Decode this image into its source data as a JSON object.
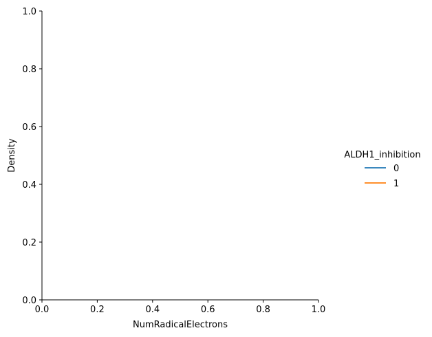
{
  "chart_data": {
    "type": "line",
    "title": "",
    "xlabel": "NumRadicalElectrons",
    "ylabel": "Density",
    "xlim": [
      0.0,
      1.0
    ],
    "ylim": [
      0.0,
      1.0
    ],
    "xticks": [
      "0.0",
      "0.2",
      "0.4",
      "0.6",
      "0.8",
      "1.0"
    ],
    "yticks": [
      "0.0",
      "0.2",
      "0.4",
      "0.6",
      "0.8",
      "1.0"
    ],
    "grid": false,
    "legend": {
      "title": "ALDH1_inhibition",
      "placement": "right, outside"
    },
    "series": [
      {
        "name": "0",
        "color": "#1f77b4",
        "x": [],
        "y": []
      },
      {
        "name": "1",
        "color": "#ff7f0e",
        "x": [],
        "y": []
      }
    ]
  }
}
